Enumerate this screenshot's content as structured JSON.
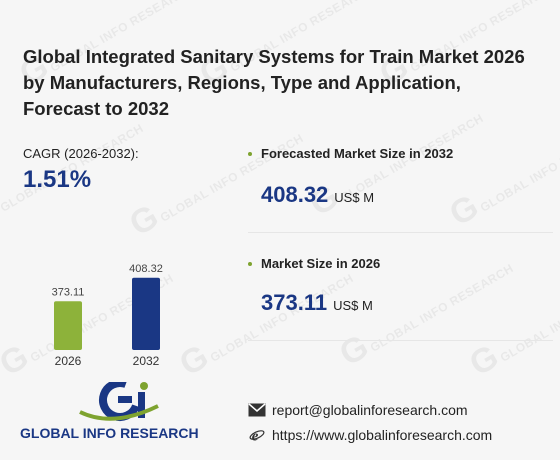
{
  "title": "Global Integrated Sanitary Systems for Train Market 2026 by Manufacturers, Regions, Type and Application, Forecast to 2032",
  "cagr": {
    "label": "CAGR (2026-2032):",
    "value": "1.51%"
  },
  "stats": [
    {
      "label": "Forecasted Market Size in 2032",
      "value": "408.32",
      "unit": "US$ M"
    },
    {
      "label": "Market Size in 2026",
      "value": "373.11",
      "unit": "US$ M"
    }
  ],
  "chart_data": {
    "type": "bar",
    "categories": [
      "2026",
      "2032"
    ],
    "values": [
      373.11,
      408.32
    ],
    "value_labels": [
      "373.11",
      "408.32"
    ],
    "colors": [
      "#8db23a",
      "#1a3784"
    ],
    "title": "",
    "xlabel": "",
    "ylabel": "",
    "ylim": [
      300,
      420
    ],
    "grid": false
  },
  "logo": {
    "text": "GLOBAL INFO RESEARCH",
    "colors": {
      "blue": "#1a3784",
      "green": "#7ea32f"
    }
  },
  "contact": {
    "email": "report@globalinforesearch.com",
    "website": "https://www.globalinforesearch.com",
    "email_icon": "envelope-icon",
    "web_icon": "internet-explorer-icon"
  },
  "colors": {
    "accent_blue": "#1a3784",
    "accent_green": "#7ea32f"
  }
}
